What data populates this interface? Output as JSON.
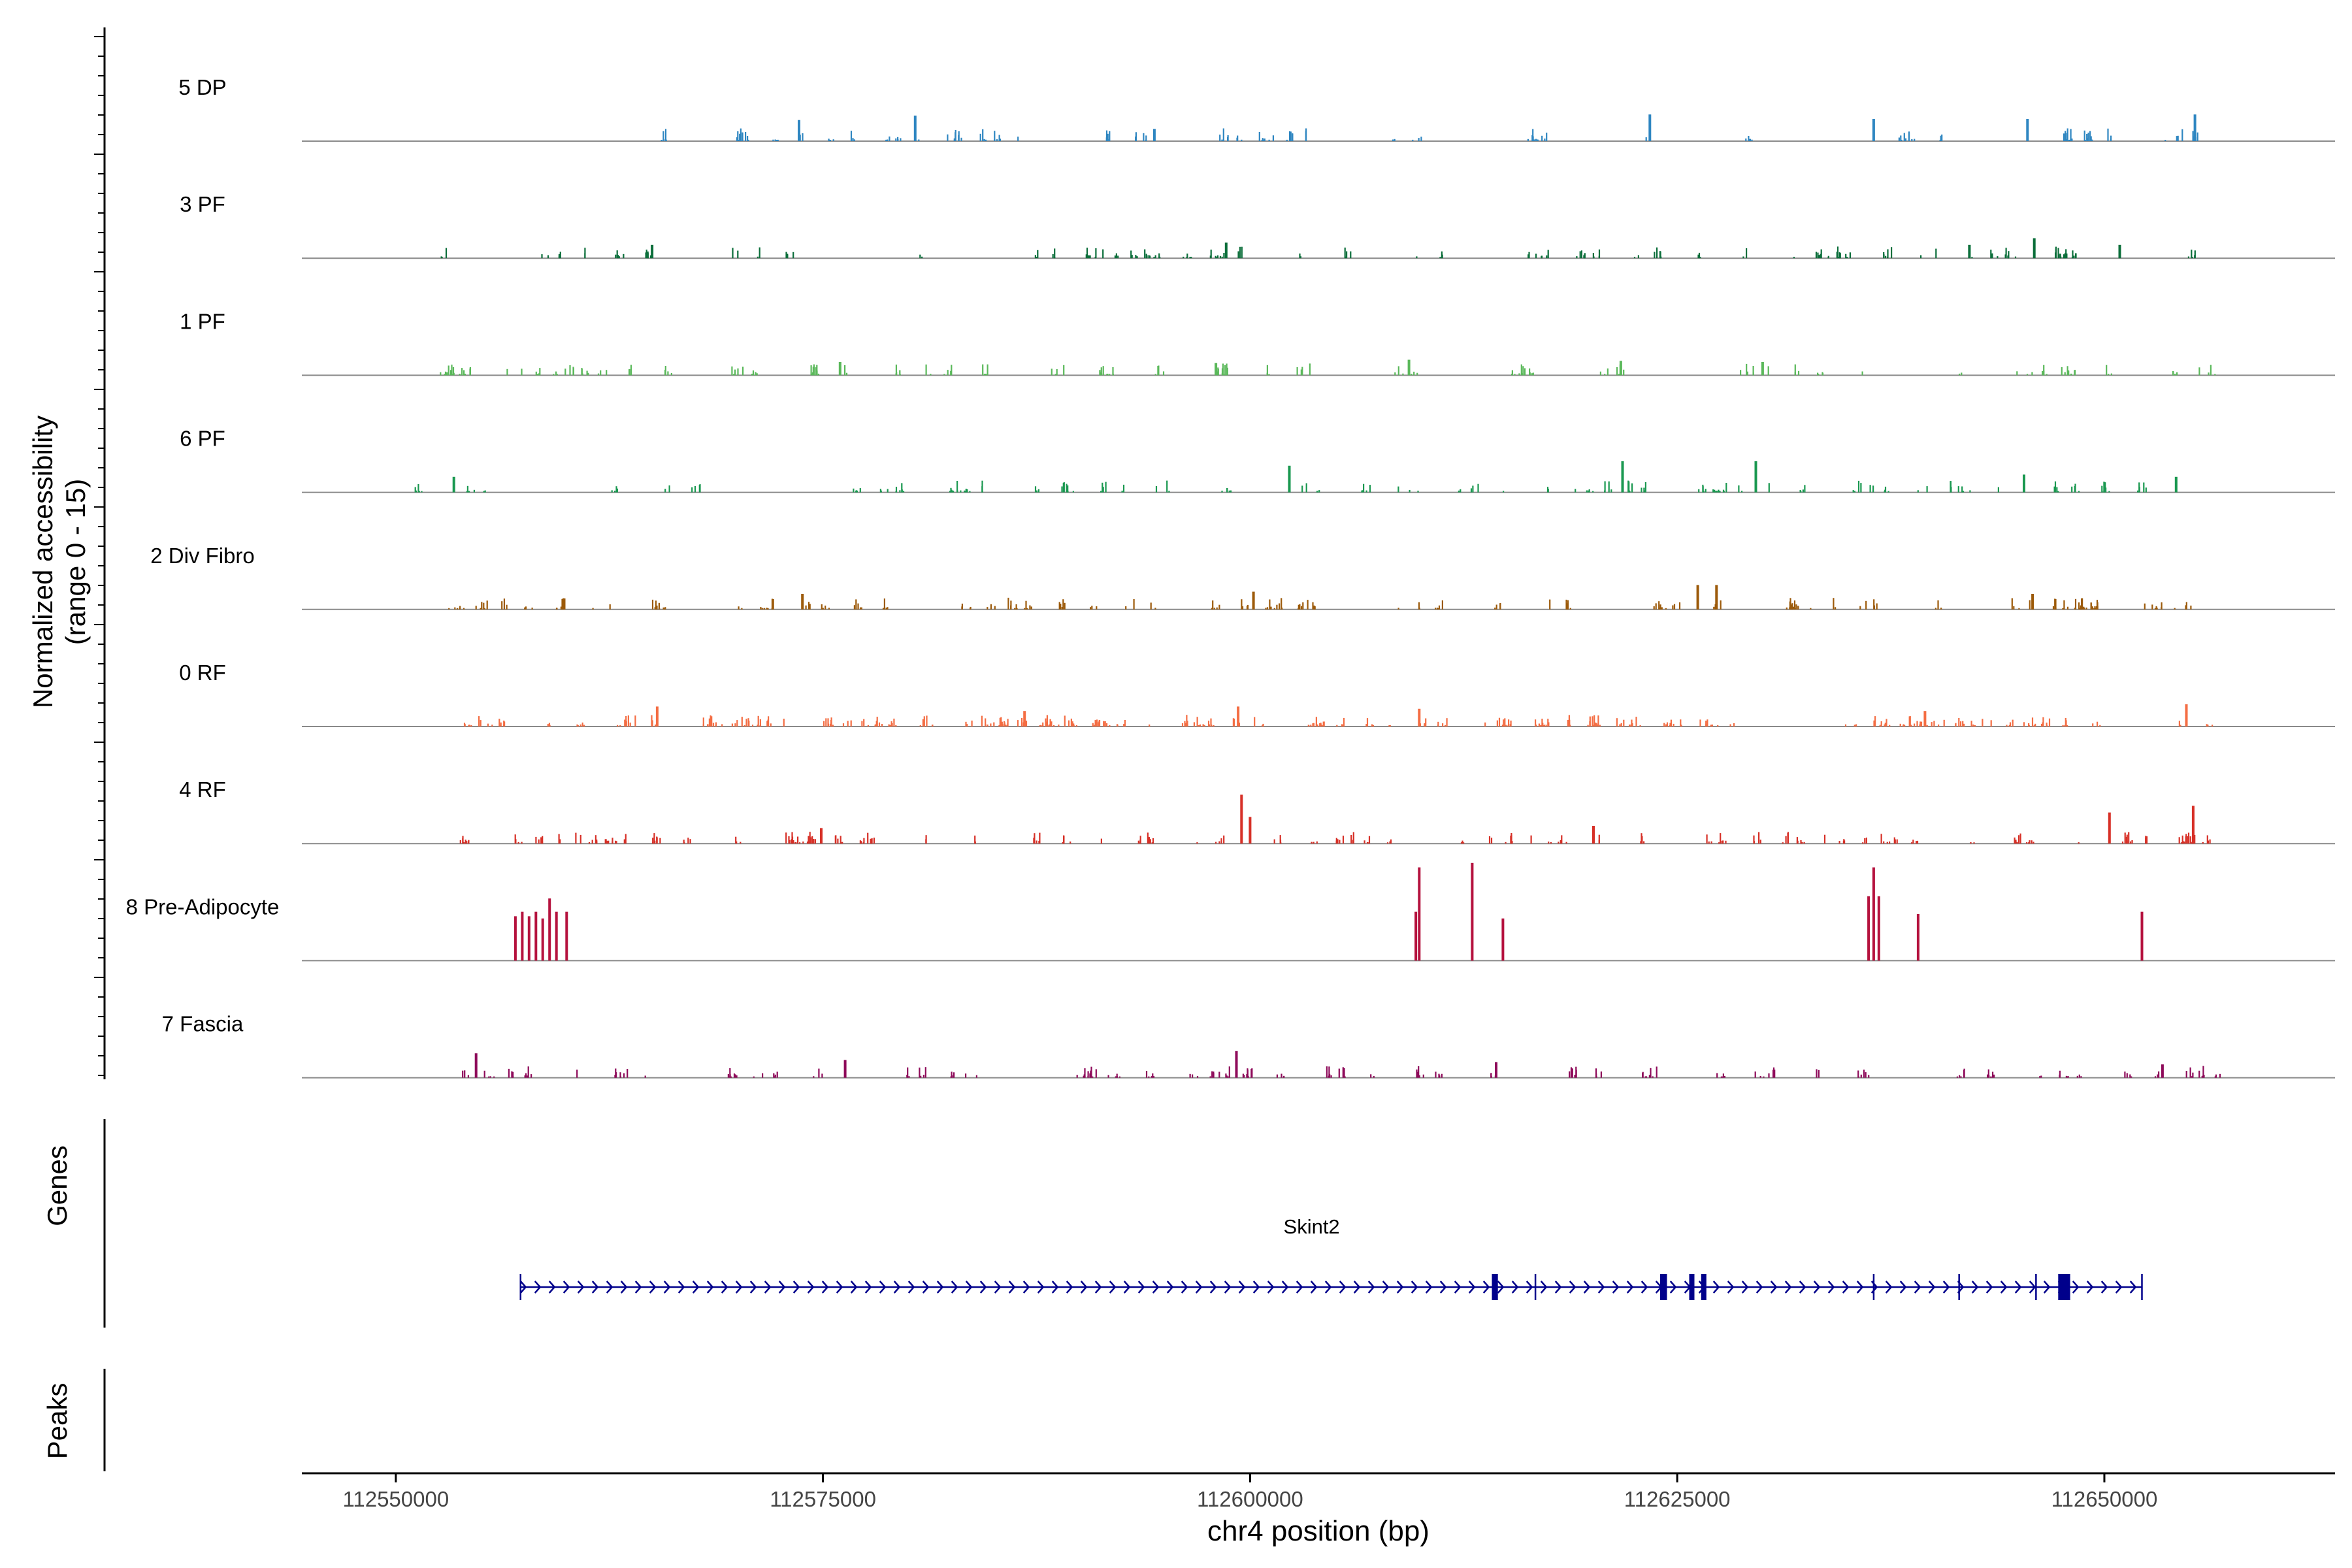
{
  "chart_data": {
    "type": "area",
    "subtype": "genome-coverage-tracks",
    "ylabel_line1": "Normalized accessibility",
    "ylabel_line2": "(range 0 - 15)",
    "xlabel": "chr4 position (bp)",
    "xlim": [
      112544500,
      112663500
    ],
    "x_ticks": [
      112550000,
      112575000,
      112600000,
      112625000,
      112650000
    ],
    "x_tick_labels": [
      "112550000",
      "112575000",
      "112600000",
      "112625000",
      "112650000"
    ],
    "y_range": [
      0,
      15
    ],
    "panel_titles": {
      "genes": "Genes",
      "peaks": "Peaks"
    },
    "tracks": [
      {
        "name": "5 DP",
        "color": "#2e86c1",
        "start": 112563000,
        "end": 112655500,
        "density": 0.75,
        "scale": 4.5,
        "peaks": [
          [
            112573600,
            9.5
          ],
          [
            112580400,
            11.5
          ],
          [
            112594400,
            5.5
          ],
          [
            112623400,
            12
          ],
          [
            112636500,
            10
          ],
          [
            112645500,
            10
          ],
          [
            112655300,
            12
          ]
        ]
      },
      {
        "name": "3 PF",
        "color": "#0b6e3a",
        "start": 112552300,
        "end": 112655500,
        "density": 0.9,
        "scale": 4,
        "peaks": [
          [
            112565000,
            6
          ],
          [
            112598600,
            7
          ],
          [
            112645900,
            9
          ],
          [
            112642100,
            6
          ],
          [
            112650900,
            6
          ]
        ]
      },
      {
        "name": "1 PF",
        "color": "#5ab85a",
        "start": 112550400,
        "end": 112657000,
        "density": 0.9,
        "scale": 4,
        "peaks": [
          [
            112576000,
            6
          ],
          [
            112609300,
            7
          ],
          [
            112621700,
            6.5
          ],
          [
            112630000,
            6
          ],
          [
            112598000,
            5.5
          ]
        ]
      },
      {
        "name": "6 PF",
        "color": "#1a9850",
        "start": 112550400,
        "end": 112654200,
        "density": 0.9,
        "scale": 4,
        "peaks": [
          [
            112553400,
            7
          ],
          [
            112602300,
            12
          ],
          [
            112621800,
            14
          ],
          [
            112629600,
            14
          ],
          [
            112645300,
            8
          ],
          [
            112654200,
            7
          ]
        ]
      },
      {
        "name": "2 Div Fibro",
        "color": "#9c5a0a",
        "start": 112551000,
        "end": 112656800,
        "density": 1.1,
        "scale": 4,
        "peaks": [
          [
            112626200,
            11
          ],
          [
            112627300,
            11
          ],
          [
            112600200,
            8
          ],
          [
            112645800,
            7
          ],
          [
            112573800,
            7
          ]
        ]
      },
      {
        "name": "0 RF",
        "color": "#f46d43",
        "start": 112553200,
        "end": 112657000,
        "density": 1.9,
        "scale": 4,
        "peaks": [
          [
            112565300,
            9
          ],
          [
            112599300,
            9
          ],
          [
            112609900,
            8
          ],
          [
            112654800,
            10
          ],
          [
            112639500,
            7
          ],
          [
            112586800,
            7
          ]
        ]
      },
      {
        "name": "4 RF",
        "color": "#d73027",
        "start": 112552900,
        "end": 112657000,
        "density": 1.2,
        "scale": 4,
        "peaks": [
          [
            112599500,
            22
          ],
          [
            112600000,
            12
          ],
          [
            112655200,
            17
          ],
          [
            112650300,
            14
          ],
          [
            112620100,
            8
          ],
          [
            112574900,
            7
          ]
        ]
      },
      {
        "name": "8 Pre-Adipocyte",
        "color": "#b5123e",
        "start": 112557000,
        "end": 112652500,
        "density": 0,
        "scale": 0,
        "peaks": [
          [
            112557000,
            20
          ],
          [
            112557400,
            22
          ],
          [
            112557800,
            20
          ],
          [
            112558200,
            22
          ],
          [
            112558600,
            19
          ],
          [
            112559000,
            28
          ],
          [
            112559400,
            22
          ],
          [
            112560000,
            22
          ],
          [
            112609700,
            22
          ],
          [
            112609900,
            42
          ],
          [
            112613000,
            44
          ],
          [
            112614800,
            19
          ],
          [
            112636200,
            29
          ],
          [
            112636500,
            42
          ],
          [
            112636800,
            29
          ],
          [
            112639100,
            21
          ],
          [
            112652200,
            22
          ]
        ]
      },
      {
        "name": "7 Fascia",
        "color": "#8e0a5a",
        "start": 112550800,
        "end": 112657000,
        "density": 0.9,
        "scale": 4,
        "peaks": [
          [
            112554700,
            11
          ],
          [
            112599200,
            12
          ],
          [
            112614400,
            7
          ],
          [
            112576300,
            8
          ],
          [
            112653400,
            6
          ]
        ]
      }
    ],
    "gene": {
      "name": "Skint2",
      "start": 112557300,
      "end": 112652200,
      "color": "#00008b",
      "exons": [
        [
          112614200,
          112614400
        ],
        [
          112624000,
          112624400
        ],
        [
          112625700,
          112626000
        ],
        [
          112626400,
          112626700
        ],
        [
          112647300,
          112648000
        ]
      ]
    },
    "peaks_track": []
  }
}
